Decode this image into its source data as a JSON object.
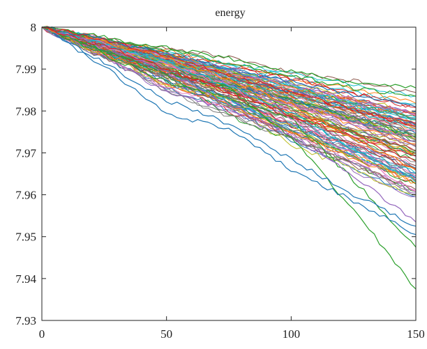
{
  "chart_data": {
    "type": "line",
    "title": "energy",
    "xlabel": "",
    "ylabel": "",
    "xlim": [
      0,
      150
    ],
    "ylim": [
      7.93,
      8.0
    ],
    "xticks": [
      0,
      50,
      100,
      150
    ],
    "xtick_labels": [
      "0",
      "50",
      "100",
      "150"
    ],
    "yticks": [
      7.93,
      7.94,
      7.95,
      7.96,
      7.97,
      7.98,
      7.99,
      8.0
    ],
    "ytick_labels": [
      "7.93",
      "7.94",
      "7.95",
      "7.96",
      "7.97",
      "7.98",
      "7.99",
      "8"
    ],
    "grid": false,
    "legend": false,
    "x": [
      0,
      25,
      50,
      75,
      100,
      125,
      150
    ],
    "palette": [
      "#1f77b4",
      "#ff7f0e",
      "#2ca02c",
      "#d62728",
      "#9467bd",
      "#8c564b",
      "#e377c2",
      "#17becf",
      "#bcbd22",
      "#7f7f7f"
    ],
    "series": [
      {
        "color": "#2ca02c",
        "values": [
          8.0,
          7.9945,
          7.989,
          7.9855,
          7.9735,
          7.9565,
          7.9375
        ]
      },
      {
        "color": "#2ca02c",
        "values": [
          8.0,
          7.9935,
          7.987,
          7.983,
          7.978,
          7.9635,
          7.9475
        ]
      },
      {
        "color": "#1f77b4",
        "values": [
          8.0,
          7.9905,
          7.9795,
          7.9755,
          7.966,
          7.9585,
          7.9505
        ]
      },
      {
        "color": "#1f77b4",
        "values": [
          8.0,
          7.9915,
          7.9825,
          7.977,
          7.9685,
          7.96,
          7.9525
        ]
      },
      {
        "color": "#9467bd",
        "values": [
          8.0,
          7.9955,
          7.9895,
          7.9815,
          7.974,
          7.9645,
          7.9535
        ]
      },
      {
        "color": "#e377c2",
        "values": [
          8.0,
          7.996,
          7.991,
          7.986,
          7.978,
          7.9695,
          7.961
        ]
      },
      {
        "color": "#17becf",
        "values": [
          8.0,
          7.996,
          7.9915,
          7.986,
          7.9795,
          7.971,
          7.963
        ]
      },
      {
        "color": "#ff7f0e",
        "values": [
          8.0,
          7.9965,
          7.9925,
          7.9875,
          7.9815,
          7.9735,
          7.966
        ]
      },
      {
        "color": "#2ca02c",
        "values": [
          8.0,
          7.9975,
          7.995,
          7.9925,
          7.9895,
          7.9865,
          7.9855
        ]
      },
      {
        "color": "#2ca02c",
        "values": [
          8.0,
          7.9975,
          7.9945,
          7.9915,
          7.9885,
          7.9855,
          7.9835
        ]
      },
      {
        "color": "#1f77b4",
        "values": [
          8.0,
          7.997,
          7.9935,
          7.99,
          7.987,
          7.984,
          7.981
        ]
      },
      {
        "color": "#d62728",
        "values": [
          8.0,
          7.997,
          7.993,
          7.9885,
          7.9845,
          7.9805,
          7.977
        ]
      },
      {
        "color": "#d62728",
        "values": [
          8.0,
          7.9955,
          7.99,
          7.9845,
          7.979,
          7.9735,
          7.968
        ]
      }
    ],
    "bundle": {
      "description_free": true,
      "count": 110,
      "end_min": 7.9595,
      "end_max": 7.9845,
      "mid_curve": 0.06,
      "seed": 7
    }
  }
}
